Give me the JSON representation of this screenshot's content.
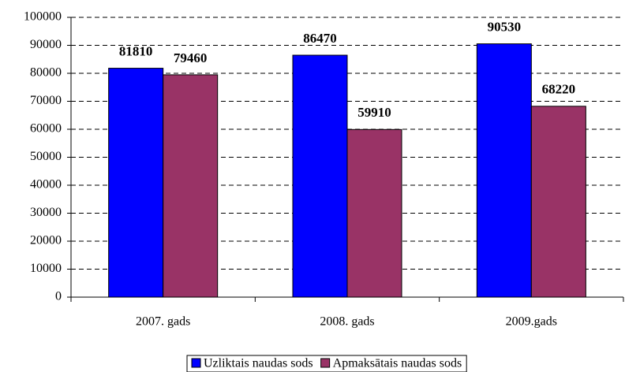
{
  "chart_data": {
    "type": "bar",
    "categories": [
      "2007. gads",
      "2008. gads",
      "2009.gads"
    ],
    "series": [
      {
        "name": "Uzliktais naudas sods",
        "color": "#0000ff",
        "values": [
          81810,
          86470,
          90530
        ]
      },
      {
        "name": "Apmaksātais naudas sods",
        "color": "#993366",
        "values": [
          79460,
          59910,
          68220
        ]
      }
    ],
    "ylim": [
      0,
      100000
    ],
    "yticks": [
      0,
      10000,
      20000,
      30000,
      40000,
      50000,
      60000,
      70000,
      80000,
      90000,
      100000
    ],
    "grid": true,
    "legend": "bottom"
  }
}
